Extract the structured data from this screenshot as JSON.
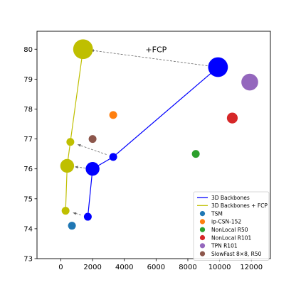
{
  "chart_data": {
    "type": "scatter",
    "title": "",
    "xlabel": "",
    "ylabel": "",
    "xlim": [
      -1500,
      13200
    ],
    "ylim": [
      73,
      80.6
    ],
    "x_ticks": [
      0,
      2000,
      4000,
      6000,
      8000,
      10000,
      12000
    ],
    "y_ticks": [
      73,
      74,
      75,
      76,
      77,
      78,
      79,
      80
    ],
    "grid": false,
    "legend_placement": "lower-right",
    "lines": [
      {
        "name": "3D Backbones",
        "color": "#0000ff",
        "x": [
          1700,
          2000,
          3300,
          9900
        ],
        "y": [
          74.4,
          76.0,
          76.4,
          79.4
        ],
        "sizes": [
          1,
          2,
          1,
          3
        ]
      },
      {
        "name": "3D Backbones + FCP",
        "color": "#bfbf00",
        "x": [
          300,
          400,
          600,
          1400
        ],
        "y": [
          74.6,
          76.1,
          76.9,
          80.0
        ],
        "sizes": [
          1,
          2,
          1,
          3
        ]
      }
    ],
    "points": [
      {
        "name": "TSM",
        "color": "#1f77b4",
        "x": 700,
        "y": 74.1,
        "size": 1
      },
      {
        "name": "ip-CSN-152",
        "color": "#ff7f0e",
        "x": 3300,
        "y": 77.8,
        "size": 1
      },
      {
        "name": "NonLocal R50",
        "color": "#2ca02c",
        "x": 8500,
        "y": 76.5,
        "size": 1
      },
      {
        "name": "NonLocal R101",
        "color": "#d62728",
        "x": 10800,
        "y": 77.7,
        "size": 1.5
      },
      {
        "name": "TPN R101",
        "color": "#9467bd",
        "x": 11900,
        "y": 78.9,
        "size": 2.5
      },
      {
        "name": "SlowFast 8×8, R50",
        "color": "#8c564b",
        "x": 2000,
        "y": 77.0,
        "size": 1
      }
    ],
    "arrows": [
      {
        "from": [
          9900,
          79.4
        ],
        "to": [
          1400,
          80.0
        ]
      },
      {
        "from": [
          3300,
          76.4
        ],
        "to": [
          600,
          76.9
        ]
      },
      {
        "from": [
          2000,
          76.0
        ],
        "to": [
          400,
          76.1
        ]
      },
      {
        "from": [
          1700,
          74.4
        ],
        "to": [
          300,
          74.6
        ]
      }
    ],
    "annotations": [
      {
        "text": "+FCP",
        "x": 6000,
        "y": 79.9
      }
    ]
  }
}
